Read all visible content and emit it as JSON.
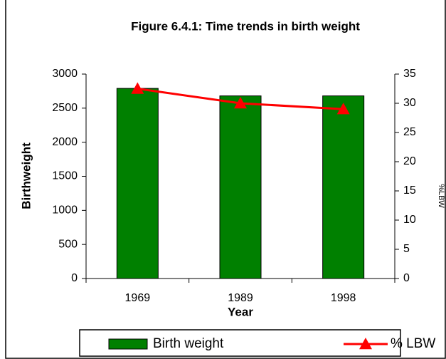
{
  "chart_data": {
    "type": "bar",
    "title": "Figure 6.4.1: Time trends in birth weight",
    "categories": [
      "1969",
      "1989",
      "1998"
    ],
    "series": [
      {
        "name": "Birth weight",
        "type": "bar",
        "color": "#008000",
        "values": [
          2790,
          2680,
          2680
        ]
      },
      {
        "name": "% LBW",
        "type": "line",
        "axis": "y2",
        "color": "#ff0000",
        "values": [
          32.5,
          30.0,
          29.0
        ]
      }
    ],
    "x_label": "Year",
    "y_label": "Birthweight",
    "y2_label": "%LBW",
    "ylim": [
      0,
      3000
    ],
    "yticks": [
      0,
      500,
      1000,
      1500,
      2000,
      2500,
      3000
    ],
    "y2lim": [
      0,
      35
    ],
    "y2ticks": [
      0,
      5,
      10,
      15,
      20,
      25,
      30,
      35
    ],
    "legend": "bottom"
  }
}
